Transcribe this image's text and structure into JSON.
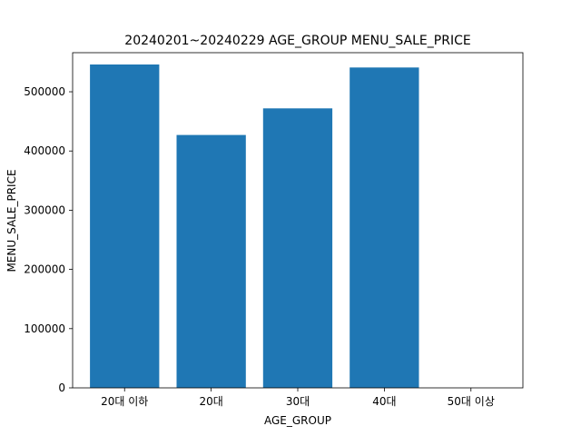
{
  "chart_data": {
    "type": "bar",
    "title": "20240201~20240229  AGE_GROUP   MENU_SALE_PRICE",
    "xlabel": "AGE_GROUP",
    "ylabel": "MENU_SALE_PRICE",
    "categories": [
      "20대 이하",
      "20대",
      "30대",
      "40대",
      "50대 이상"
    ],
    "values": [
      546000,
      427000,
      472000,
      541000,
      0
    ],
    "ylim": [
      0,
      566000
    ],
    "yticks": [
      0,
      100000,
      200000,
      300000,
      400000,
      500000
    ],
    "ytick_labels": [
      "0",
      "100000",
      "200000",
      "300000",
      "400000",
      "500000"
    ],
    "bar_color": "#1f77b4",
    "grid": false,
    "legend": "none"
  }
}
